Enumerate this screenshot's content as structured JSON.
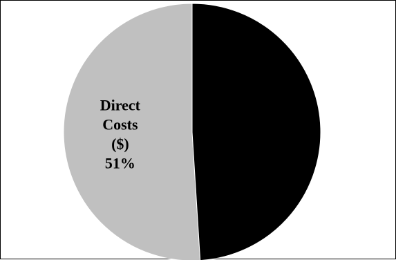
{
  "chart_data": {
    "type": "pie",
    "slices": [
      {
        "label_lines": [
          "Direct",
          "Costs",
          "($)",
          "51%"
        ],
        "value": 51,
        "color": "#c0c0c0"
      },
      {
        "label_lines": [],
        "value": 49,
        "color": "#000000"
      }
    ]
  }
}
